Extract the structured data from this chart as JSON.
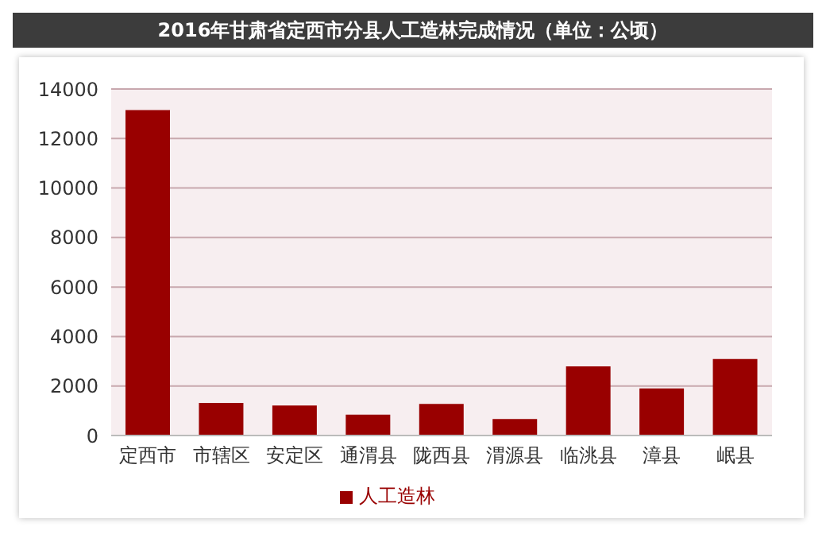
{
  "chart_data": {
    "type": "bar",
    "title": "2016年甘肃省定西市分县人工造林完成情况（单位：公顷）",
    "categories": [
      "定西市",
      "市辖区",
      "安定区",
      "通渭县",
      "陇西县",
      "渭源县",
      "临洮县",
      "漳县",
      "岷县"
    ],
    "series": [
      {
        "name": "人工造林",
        "color": "#990000",
        "values": [
          13150,
          1320,
          1210,
          840,
          1280,
          670,
          2790,
          1900,
          3090
        ]
      }
    ],
    "ylim": [
      0,
      14000
    ],
    "yticks": [
      0,
      2000,
      4000,
      6000,
      8000,
      10000,
      12000,
      14000
    ],
    "grid": "y",
    "legend": "bottom"
  }
}
